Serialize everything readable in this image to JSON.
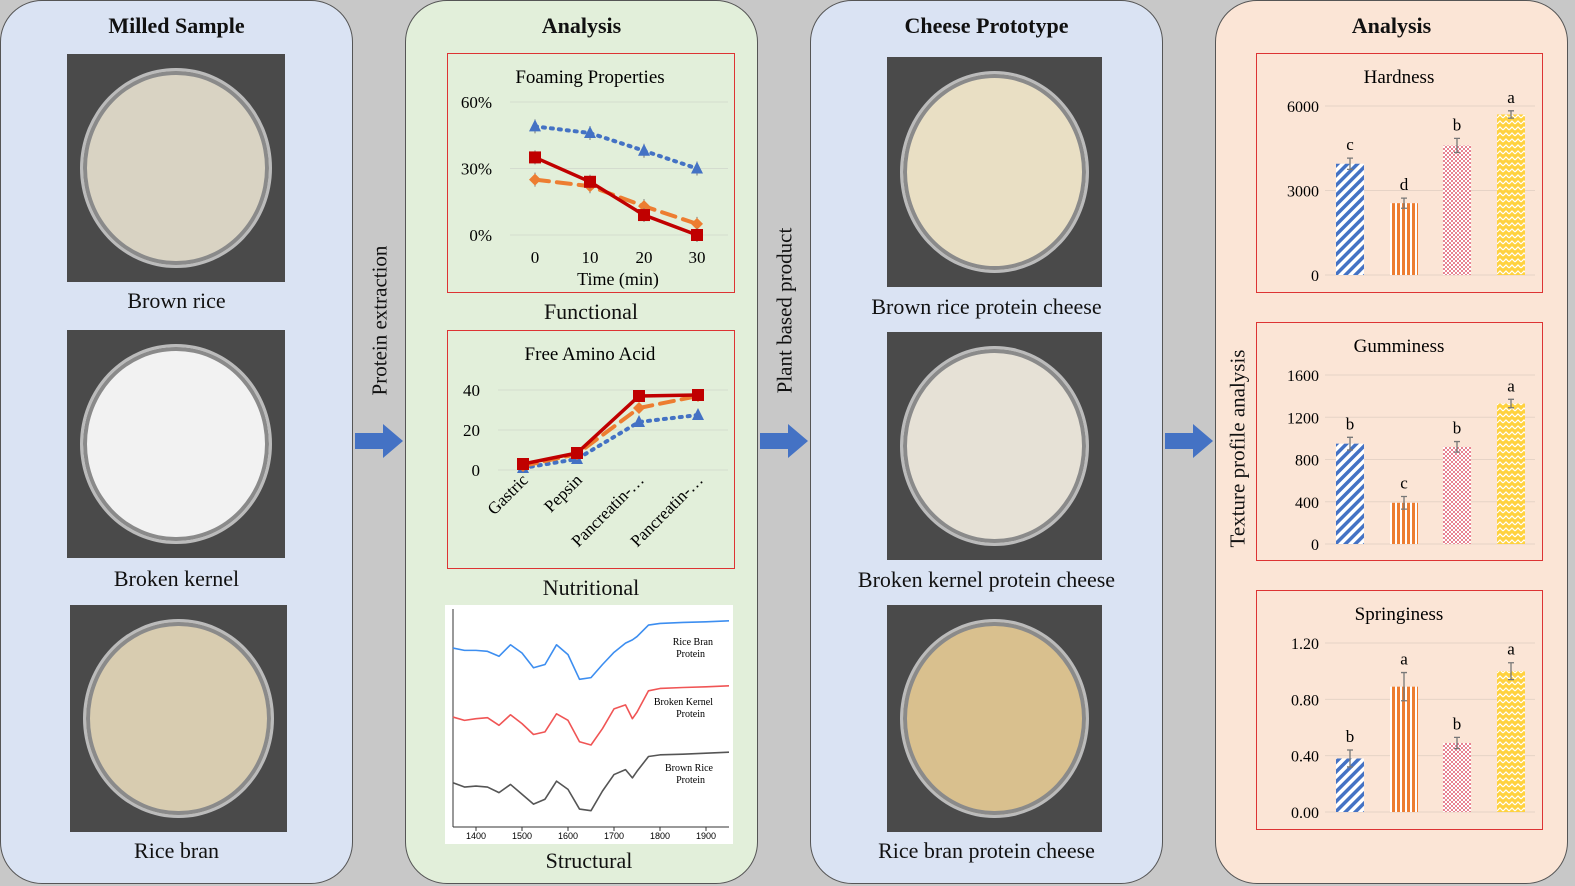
{
  "milled": {
    "title": "Milled Sample",
    "samples": [
      "Brown rice",
      "Broken kernel",
      "Rice bran"
    ],
    "colors": [
      "#d9d3c3",
      "#f2f2f2",
      "#d8ccb0"
    ]
  },
  "arrows": {
    "step1": "Protein extraction",
    "step2": "Plant based product",
    "color": "#4472c4"
  },
  "analysis": {
    "title": "Analysis",
    "functional": "Functional",
    "nutritional": "Nutritional",
    "structural": "Structural"
  },
  "cheese": {
    "title": "Cheese Prototype",
    "samples": [
      "Brown rice protein cheese",
      "Broken kernel protein cheese",
      "Rice bran protein cheese"
    ],
    "colors": [
      "#e9dfc4",
      "#e6e1d6",
      "#d9c08e"
    ]
  },
  "tpa": {
    "title": "Analysis",
    "axis_label": "Texture profile analysis"
  },
  "chart_data": [
    {
      "id": "foaming",
      "type": "line",
      "title": "Foaming Properties",
      "xlabel": "Time (min)",
      "ylabel": "",
      "x": [
        0,
        10,
        20,
        30
      ],
      "xticks": [
        "0",
        "10",
        "20",
        "30"
      ],
      "yticks": [
        "0%",
        "30%",
        "60%"
      ],
      "ylim": [
        0,
        60
      ],
      "grid": true,
      "series": [
        {
          "color": "#4472c4",
          "style": "dotted",
          "marker": "triangle",
          "values": [
            49,
            46,
            38,
            30
          ]
        },
        {
          "color": "#ed7d31",
          "style": "dashed",
          "marker": "diamond",
          "values": [
            25,
            22,
            13,
            5
          ]
        },
        {
          "color": "#c00000",
          "style": "solid",
          "marker": "square",
          "values": [
            35,
            24,
            9,
            0
          ]
        }
      ]
    },
    {
      "id": "amino",
      "type": "line",
      "title": "Free Amino Acid",
      "xlabel": "",
      "ylabel": "",
      "categories": [
        "Gastric",
        "Pepsin",
        "Pancreatin-…",
        "Pancreatin-…"
      ],
      "yticks": [
        "0",
        "20",
        "40"
      ],
      "ylim": [
        0,
        40
      ],
      "grid": true,
      "series": [
        {
          "color": "#4472c4",
          "style": "dotted",
          "marker": "triangle",
          "values": [
            1,
            5.5,
            24,
            27.5
          ]
        },
        {
          "color": "#ed7d31",
          "style": "dashed",
          "marker": "diamond",
          "values": [
            2,
            8,
            31,
            37
          ]
        },
        {
          "color": "#c00000",
          "style": "solid",
          "marker": "square",
          "values": [
            3,
            8.5,
            37,
            37.5
          ]
        }
      ]
    },
    {
      "id": "ftir",
      "type": "line",
      "title": "",
      "xticks": [
        "1400",
        "1500",
        "1600",
        "1700",
        "1800",
        "1900"
      ],
      "xlim": [
        1350,
        1950
      ],
      "ylim": [
        0,
        7
      ],
      "x": [
        1350,
        1375,
        1400,
        1425,
        1450,
        1475,
        1500,
        1525,
        1550,
        1575,
        1600,
        1625,
        1650,
        1675,
        1700,
        1725,
        1740,
        1750,
        1775,
        1800,
        1850,
        1900,
        1950
      ],
      "series": [
        {
          "name": "Rice Bran Protein",
          "color": "#3d8ef0",
          "values": [
            5.75,
            5.68,
            5.68,
            5.65,
            5.5,
            5.85,
            5.6,
            5.15,
            5.25,
            5.85,
            5.55,
            4.8,
            4.85,
            5.25,
            5.62,
            5.9,
            6.0,
            6.1,
            6.45,
            6.5,
            6.53,
            6.55,
            6.58
          ]
        },
        {
          "name": "Broken Kernel Protein",
          "color": "#f05555",
          "values": [
            3.65,
            3.55,
            3.6,
            3.63,
            3.4,
            3.72,
            3.45,
            3.12,
            3.2,
            3.75,
            3.55,
            2.9,
            2.8,
            3.3,
            3.9,
            4.02,
            3.6,
            3.8,
            4.45,
            4.52,
            4.55,
            4.57,
            4.6
          ]
        },
        {
          "name": "Brown Rice Protein",
          "color": "#555555",
          "values": [
            1.65,
            1.52,
            1.55,
            1.52,
            1.35,
            1.6,
            1.3,
            1.0,
            1.15,
            1.7,
            1.45,
            0.85,
            0.8,
            1.4,
            1.9,
            2.05,
            1.8,
            2.0,
            2.45,
            2.5,
            2.52,
            2.55,
            2.58
          ]
        }
      ]
    },
    {
      "id": "hardness",
      "type": "bar",
      "title": "Hardness",
      "yticks": [
        "0",
        "3000",
        "6000"
      ],
      "ylim": [
        0,
        6000
      ],
      "values": [
        3950,
        2550,
        4600,
        5700
      ],
      "errors": [
        200,
        180,
        250,
        130
      ],
      "letters": [
        "c",
        "d",
        "b",
        "a"
      ]
    },
    {
      "id": "gumminess",
      "type": "bar",
      "title": "Gumminess",
      "yticks": [
        "0",
        "400",
        "800",
        "1200",
        "1600"
      ],
      "ylim": [
        0,
        1600
      ],
      "values": [
        950,
        390,
        920,
        1330
      ],
      "errors": [
        60,
        60,
        50,
        40
      ],
      "letters": [
        "b",
        "c",
        "b",
        "a"
      ]
    },
    {
      "id": "springiness",
      "type": "bar",
      "title": "Springiness",
      "yticks": [
        "0.00",
        "0.40",
        "0.80",
        "1.20"
      ],
      "ylim": [
        0,
        1.2
      ],
      "values": [
        0.38,
        0.89,
        0.49,
        1.0
      ],
      "errors": [
        0.06,
        0.1,
        0.04,
        0.06
      ],
      "letters": [
        "b",
        "a",
        "b",
        "a"
      ]
    }
  ]
}
